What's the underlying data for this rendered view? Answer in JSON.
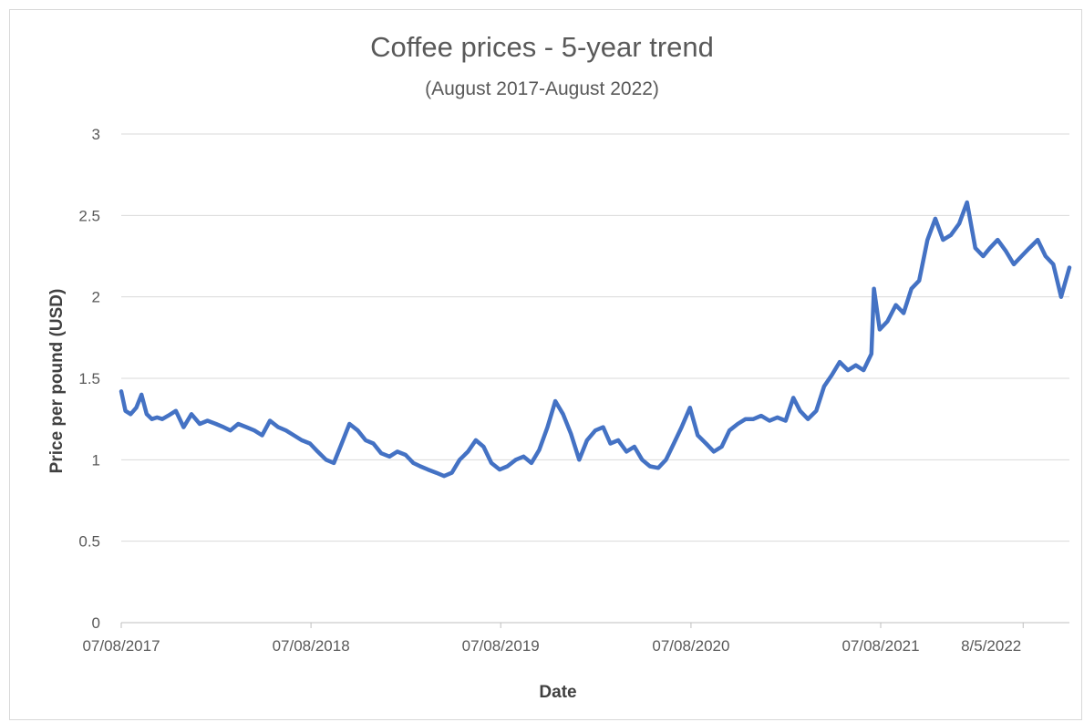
{
  "chart_data": {
    "type": "line",
    "title": "Coffee prices - 5-year trend",
    "subtitle": "(August 2017-August 2022)",
    "xlabel": "Date",
    "ylabel": "Price per pound (USD)",
    "ylim": [
      0,
      3
    ],
    "y_ticks": [
      "0",
      "0.5",
      "1",
      "1.5",
      "2",
      "2.5",
      "3"
    ],
    "x_ticks": [
      "07/08/2017",
      "07/08/2018",
      "07/08/2019",
      "07/08/2020",
      "07/08/2021",
      "8/5/2022"
    ],
    "grid": "horizontal",
    "legend": "none",
    "line_color": "#4472c4",
    "series": [
      {
        "x": [
          "2017-08-07",
          "2017-08-15",
          "2017-08-25",
          "2017-09-05",
          "2017-09-15",
          "2017-09-25",
          "2017-10-05",
          "2017-10-15",
          "2017-10-25",
          "2017-11-05",
          "2017-11-20",
          "2017-12-05",
          "2017-12-20",
          "2018-01-05",
          "2018-01-20",
          "2018-02-05",
          "2018-02-20",
          "2018-03-05",
          "2018-03-20",
          "2018-04-05",
          "2018-04-20",
          "2018-05-05",
          "2018-05-20",
          "2018-06-05",
          "2018-06-20",
          "2018-07-05",
          "2018-07-20",
          "2018-08-05",
          "2018-08-20",
          "2018-09-05",
          "2018-09-20",
          "2018-10-05",
          "2018-10-20",
          "2018-11-05",
          "2018-11-20",
          "2018-12-05",
          "2018-12-20",
          "2019-01-05",
          "2019-01-20",
          "2019-02-05",
          "2019-02-20",
          "2019-03-05",
          "2019-03-20",
          "2019-04-05",
          "2019-04-20",
          "2019-05-05",
          "2019-05-20",
          "2019-06-05",
          "2019-06-20",
          "2019-07-05",
          "2019-07-20",
          "2019-08-05",
          "2019-08-20",
          "2019-09-05",
          "2019-09-20",
          "2019-10-05",
          "2019-10-20",
          "2019-11-05",
          "2019-11-20",
          "2019-12-05",
          "2019-12-20",
          "2020-01-05",
          "2020-01-20",
          "2020-02-05",
          "2020-02-20",
          "2020-03-05",
          "2020-03-20",
          "2020-04-05",
          "2020-04-20",
          "2020-05-05",
          "2020-05-20",
          "2020-06-05",
          "2020-06-20",
          "2020-07-05",
          "2020-07-20",
          "2020-08-05",
          "2020-08-20",
          "2020-09-05",
          "2020-09-20",
          "2020-10-05",
          "2020-10-20",
          "2020-11-05",
          "2020-11-20",
          "2020-12-05",
          "2020-12-20",
          "2021-01-05",
          "2021-01-20",
          "2021-02-05",
          "2021-02-20",
          "2021-03-05",
          "2021-03-20",
          "2021-04-05",
          "2021-04-20",
          "2021-05-05",
          "2021-05-20",
          "2021-06-05",
          "2021-06-20",
          "2021-07-05",
          "2021-07-20",
          "2021-07-25",
          "2021-08-05",
          "2021-08-20",
          "2021-09-05",
          "2021-09-20",
          "2021-10-05",
          "2021-10-20",
          "2021-11-05",
          "2021-11-20",
          "2021-12-05",
          "2021-12-20",
          "2022-01-05",
          "2022-01-20",
          "2022-02-05",
          "2022-02-20",
          "2022-03-05",
          "2022-03-20",
          "2022-04-05",
          "2022-04-20",
          "2022-05-05",
          "2022-05-20",
          "2022-06-05",
          "2022-06-20",
          "2022-07-05",
          "2022-07-20",
          "2022-08-05"
        ],
        "y": [
          1.42,
          1.3,
          1.28,
          1.32,
          1.4,
          1.28,
          1.25,
          1.26,
          1.25,
          1.27,
          1.3,
          1.2,
          1.28,
          1.22,
          1.24,
          1.22,
          1.2,
          1.18,
          1.22,
          1.2,
          1.18,
          1.15,
          1.24,
          1.2,
          1.18,
          1.15,
          1.12,
          1.1,
          1.05,
          1.0,
          0.98,
          1.1,
          1.22,
          1.18,
          1.12,
          1.1,
          1.04,
          1.02,
          1.05,
          1.03,
          0.98,
          0.96,
          0.94,
          0.92,
          0.9,
          0.92,
          1.0,
          1.05,
          1.12,
          1.08,
          0.98,
          0.94,
          0.96,
          1.0,
          1.02,
          0.98,
          1.06,
          1.2,
          1.36,
          1.28,
          1.16,
          1.0,
          1.12,
          1.18,
          1.2,
          1.1,
          1.12,
          1.05,
          1.08,
          1.0,
          0.96,
          0.95,
          1.0,
          1.1,
          1.2,
          1.32,
          1.15,
          1.1,
          1.05,
          1.08,
          1.18,
          1.22,
          1.25,
          1.25,
          1.27,
          1.24,
          1.26,
          1.24,
          1.38,
          1.3,
          1.25,
          1.3,
          1.45,
          1.52,
          1.6,
          1.55,
          1.58,
          1.55,
          1.65,
          2.05,
          1.8,
          1.85,
          1.95,
          1.9,
          2.05,
          2.1,
          2.35,
          2.48,
          2.35,
          2.38,
          2.45,
          2.58,
          2.3,
          2.25,
          2.3,
          2.35,
          2.28,
          2.2,
          2.25,
          2.3,
          2.35,
          2.25,
          2.2,
          2.0,
          2.18
        ]
      }
    ]
  }
}
